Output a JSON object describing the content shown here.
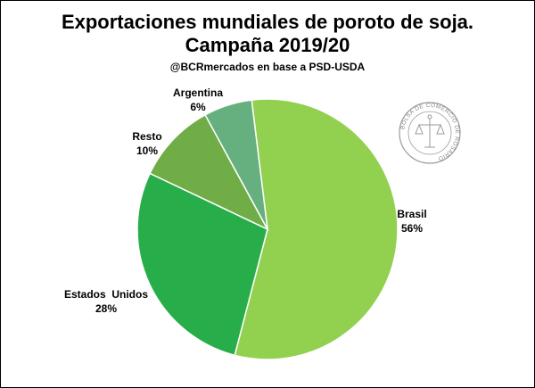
{
  "chart_data": {
    "type": "pie",
    "title": [
      "Exportaciones mundiales de poroto de soja.",
      "Campaña 2019/20"
    ],
    "subtitle": "@BCRmercados  en base a PSD-USDA",
    "start_angle_deg": -7,
    "slices": [
      {
        "name": "Brasil",
        "value": 56,
        "label": "56%",
        "color": "#92d050"
      },
      {
        "name": "Estados  Unidos",
        "value": 28,
        "label": "28%",
        "color": "#27ae4a"
      },
      {
        "name": "Resto",
        "value": 10,
        "label": "10%",
        "color": "#70ad47"
      },
      {
        "name": "Argentina",
        "value": 6,
        "label": "6%",
        "color": "#66b07f"
      }
    ]
  },
  "watermark": {
    "text": "BOLSA DE COMERCIO DE ROSARIO",
    "icon": "bolsa-comercio-rosario-seal-icon"
  }
}
